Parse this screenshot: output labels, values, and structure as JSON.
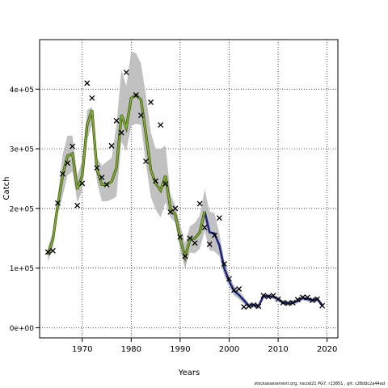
{
  "chart_data": {
    "type": "line",
    "xlabel": "Years",
    "ylabel": "Catch",
    "xlim": [
      1961.3,
      2022.2
    ],
    "ylim": [
      -17000,
      483000
    ],
    "x_ticks": [
      1970,
      1980,
      1990,
      2000,
      2010,
      2020
    ],
    "x_tick_labels": [
      "1970",
      "1980",
      "1990",
      "2000",
      "2010",
      "2020"
    ],
    "y_ticks": [
      0,
      100000,
      200000,
      300000,
      400000
    ],
    "y_tick_labels": [
      "0e+00",
      "1e+05",
      "2e+05",
      "3e+05",
      "4e+05"
    ],
    "grid": true,
    "colors": {
      "band": "#bebebe",
      "line_early": "#7db130",
      "line_late": "#1a237e",
      "marker": "#000000"
    },
    "years": [
      1963,
      1964,
      1965,
      1966,
      1967,
      1968,
      1969,
      1970,
      1971,
      1972,
      1973,
      1974,
      1975,
      1976,
      1977,
      1978,
      1979,
      1980,
      1981,
      1982,
      1983,
      1984,
      1985,
      1986,
      1987,
      1988,
      1989,
      1990,
      1991,
      1992,
      1993,
      1994,
      1995,
      1996,
      1997,
      1998,
      1999,
      2000,
      2001,
      2002,
      2003,
      2004,
      2005,
      2006,
      2007,
      2008,
      2009,
      2010,
      2011,
      2012,
      2013,
      2014,
      2015,
      2016,
      2017,
      2018,
      2019
    ],
    "estimate": [
      122000,
      148000,
      205000,
      255000,
      288000,
      292000,
      232000,
      255000,
      340000,
      365000,
      265000,
      240000,
      240000,
      245000,
      268000,
      357000,
      335000,
      385000,
      390000,
      382000,
      325000,
      265000,
      242000,
      230000,
      255000,
      200000,
      190000,
      150000,
      118000,
      148000,
      150000,
      160000,
      195000,
      160000,
      158000,
      138000,
      100000,
      78000,
      62000,
      55000,
      46000,
      37000,
      38000,
      36000,
      53000,
      53000,
      52000,
      48000,
      42000,
      41000,
      42000,
      45000,
      50000,
      48000,
      46000,
      48000,
      38000
    ],
    "upper": [
      135000,
      160000,
      220000,
      290000,
      322000,
      322000,
      255000,
      280000,
      365000,
      370000,
      285000,
      272000,
      278000,
      285000,
      340000,
      433000,
      405000,
      463000,
      460000,
      443000,
      390000,
      328000,
      300000,
      300000,
      305000,
      225000,
      205000,
      172000,
      142000,
      170000,
      176000,
      188000,
      232000,
      195000,
      192000,
      158000,
      113000,
      87000,
      70000,
      62000,
      52000,
      41000,
      42000,
      40000,
      57000,
      57000,
      56000,
      52000,
      46000,
      45000,
      46000,
      49000,
      54000,
      52000,
      50000,
      52000,
      42000
    ],
    "lower": [
      110000,
      135000,
      190000,
      220000,
      255000,
      262000,
      210000,
      230000,
      315000,
      340000,
      245000,
      212000,
      212000,
      215000,
      220000,
      312000,
      296000,
      338000,
      342000,
      340000,
      275000,
      220000,
      198000,
      185000,
      210000,
      185000,
      176000,
      130000,
      99000,
      126000,
      125000,
      132000,
      162000,
      130000,
      128000,
      120000,
      87000,
      69000,
      54000,
      48000,
      40000,
      33000,
      34000,
      32000,
      49000,
      49000,
      48000,
      44000,
      38000,
      37000,
      38000,
      41000,
      46000,
      44000,
      42000,
      44000,
      34000
    ],
    "observed": [
      {
        "x": 1963,
        "y": 127000
      },
      {
        "x": 1964,
        "y": 129000
      },
      {
        "x": 1965,
        "y": 209000
      },
      {
        "x": 1966,
        "y": 258000
      },
      {
        "x": 1967,
        "y": 276000
      },
      {
        "x": 1968,
        "y": 304000
      },
      {
        "x": 1969,
        "y": 205000
      },
      {
        "x": 1970,
        "y": 242000
      },
      {
        "x": 1971,
        "y": 410000
      },
      {
        "x": 1972,
        "y": 385000
      },
      {
        "x": 1973,
        "y": 268000
      },
      {
        "x": 1974,
        "y": 252000
      },
      {
        "x": 1975,
        "y": 240000
      },
      {
        "x": 1976,
        "y": 305000
      },
      {
        "x": 1977,
        "y": 347000
      },
      {
        "x": 1978,
        "y": 327000
      },
      {
        "x": 1979,
        "y": 428000
      },
      {
        "x": 1981,
        "y": 390000
      },
      {
        "x": 1982,
        "y": 356000
      },
      {
        "x": 1983,
        "y": 279000
      },
      {
        "x": 1984,
        "y": 378000
      },
      {
        "x": 1985,
        "y": 246000
      },
      {
        "x": 1986,
        "y": 340000
      },
      {
        "x": 1987,
        "y": 241000
      },
      {
        "x": 1988,
        "y": 194000
      },
      {
        "x": 1989,
        "y": 200000
      },
      {
        "x": 1990,
        "y": 152000
      },
      {
        "x": 1991,
        "y": 120000
      },
      {
        "x": 1992,
        "y": 150000
      },
      {
        "x": 1993,
        "y": 142000
      },
      {
        "x": 1994,
        "y": 208000
      },
      {
        "x": 1995,
        "y": 168000
      },
      {
        "x": 1996,
        "y": 140000
      },
      {
        "x": 1997,
        "y": 155000
      },
      {
        "x": 1998,
        "y": 184000
      },
      {
        "x": 1999,
        "y": 107000
      },
      {
        "x": 2000,
        "y": 82000
      },
      {
        "x": 2001,
        "y": 63000
      },
      {
        "x": 2002,
        "y": 65000
      },
      {
        "x": 2003,
        "y": 35000
      },
      {
        "x": 2004,
        "y": 36000
      },
      {
        "x": 2005,
        "y": 38000
      },
      {
        "x": 2006,
        "y": 36000
      },
      {
        "x": 2007,
        "y": 54000
      },
      {
        "x": 2008,
        "y": 52000
      },
      {
        "x": 2009,
        "y": 54000
      },
      {
        "x": 2010,
        "y": 48000
      },
      {
        "x": 2011,
        "y": 42000
      },
      {
        "x": 2012,
        "y": 41000
      },
      {
        "x": 2013,
        "y": 42000
      },
      {
        "x": 2014,
        "y": 47000
      },
      {
        "x": 2015,
        "y": 51000
      },
      {
        "x": 2016,
        "y": 51000
      },
      {
        "x": 2017,
        "y": 46000
      },
      {
        "x": 2018,
        "y": 48000
      },
      {
        "x": 2019,
        "y": 37000
      }
    ]
  },
  "footer": {
    "credit": "stockassessment.org, nscod21 PG7, r13851 , git: c28ddc2a44ad"
  }
}
